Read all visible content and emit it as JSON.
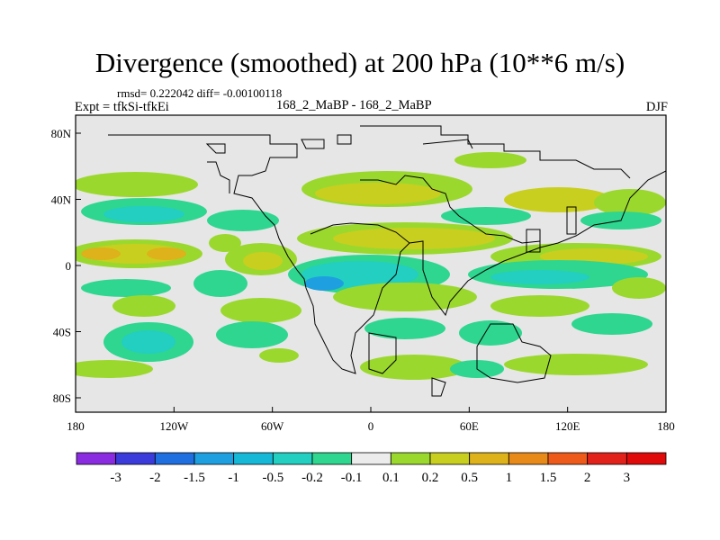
{
  "title": "Divergence (smoothed) at 200 hPa (10**6 m/s)",
  "stats_text": "rmsd= 0.222042 diff= -0.00100118",
  "experiment_label": "Expt = tfkSi-tfkEi",
  "case_label": "168_2_MaBP - 168_2_MaBP",
  "season_label": "DJF",
  "axes": {
    "x_ticks": [
      "180",
      "120W",
      "60W",
      "0",
      "60E",
      "120E",
      "180"
    ],
    "y_ticks": [
      "80N",
      "40N",
      "0",
      "40S",
      "80S"
    ]
  },
  "colorbar": {
    "labels": [
      "-3",
      "-2",
      "-1.5",
      "-1",
      "-0.5",
      "-0.2",
      "-0.1",
      "0.1",
      "0.2",
      "0.5",
      "1",
      "1.5",
      "2",
      "3"
    ],
    "colors": [
      "#8a2be2",
      "#3b3bdc",
      "#1f6fe0",
      "#1ea0e0",
      "#16b8d8",
      "#22cfc0",
      "#2fd68f",
      "#ececec",
      "#9bd82e",
      "#c9cf1e",
      "#ddb21a",
      "#e88a1a",
      "#ee5a1a",
      "#e2221a",
      "#e00a0a"
    ]
  },
  "map_colors": {
    "ocean_bg": "#e6e6e6",
    "coast": "#000000",
    "neg_weak": "#2fd68f",
    "neg_mid": "#22cfc0",
    "neg_strong": "#1ea0e0",
    "pos_weak": "#9bd82e",
    "pos_mid": "#c9cf1e",
    "pos_strong": "#ddb21a",
    "pos_max": "#e88a1a"
  }
}
